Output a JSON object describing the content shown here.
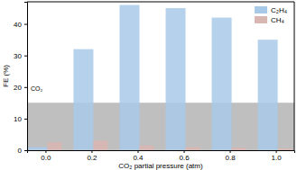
{
  "chart_data": {
    "type": "bar",
    "x_label": "CO₂ partial pressure (atm)",
    "y_label": "FE (%)",
    "annotation": "CO₂",
    "x": [
      0.0,
      0.2,
      0.4,
      0.6,
      0.8,
      1.0
    ],
    "series": [
      {
        "name": "C₂H₄",
        "color": "#a9c9e9",
        "values": [
          1,
          32,
          46,
          45,
          42,
          35
        ]
      },
      {
        "name": "CH₄",
        "color": "#d8b6b2",
        "values": [
          2.5,
          3,
          1.5,
          1,
          0.8,
          0.5
        ]
      }
    ],
    "xlim": [
      -0.08,
      1.08
    ],
    "xticks": [
      {
        "value": 0.0,
        "label": "0.0"
      },
      0.2,
      0.4,
      0.6,
      0.8,
      {
        "value": 1.0,
        "label": "1.0"
      }
    ],
    "ylim": [
      0,
      47
    ],
    "yticks": [
      0,
      10,
      20,
      30,
      40
    ],
    "legend": "top-right"
  }
}
